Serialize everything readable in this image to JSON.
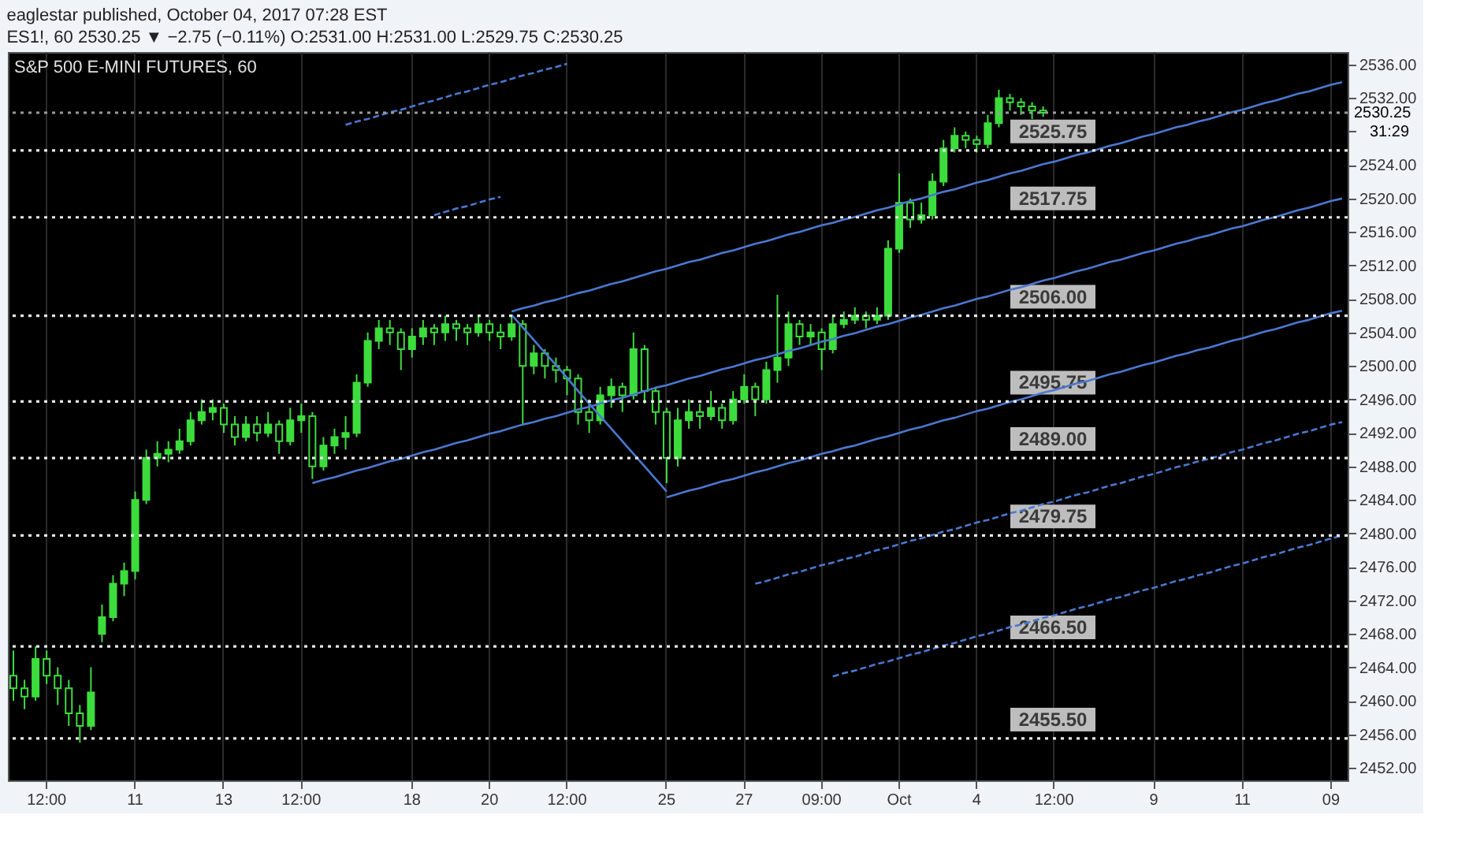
{
  "chart_data": {
    "type": "candlestick",
    "title": "eaglestar published, October 04, 2017 07:28 EST",
    "subtitle": "ES1!, 60 2530.25 ▼ −2.75 (−0.11%) O:2531.00 H:2531.00 L:2529.75 C:2530.25",
    "categories": [
      null,
      null,
      null,
      "12:00",
      null,
      null,
      null,
      null,
      null,
      null,
      null,
      "11",
      null,
      null,
      null,
      null,
      null,
      null,
      null,
      "13",
      null,
      null,
      null,
      null,
      null,
      null,
      "12:00",
      null,
      null,
      null,
      null,
      null,
      null,
      null,
      null,
      null,
      "18",
      null,
      null,
      null,
      null,
      null,
      null,
      "20",
      null,
      null,
      null,
      null,
      null,
      null,
      "12:00",
      null,
      null,
      null,
      null,
      null,
      null,
      null,
      null,
      "25",
      null,
      null,
      null,
      null,
      null,
      null,
      "27",
      null,
      null,
      null,
      null,
      null,
      null,
      "09:00",
      null,
      null,
      null,
      null,
      null,
      null,
      "Oct",
      null,
      null,
      null,
      null,
      null,
      null,
      "4",
      null,
      null,
      null,
      null,
      null,
      null,
      "12:00",
      null,
      null,
      null,
      null,
      null,
      null,
      null,
      null,
      "9",
      null,
      null,
      null,
      null,
      null,
      null,
      null,
      "11",
      null,
      null,
      null,
      null,
      null,
      null,
      null,
      "09",
      null
    ],
    "ylim": [
      2450.5,
      2537.5
    ],
    "yticks": [
      {
        "value": 2452,
        "label": "2452.00"
      },
      {
        "value": 2456,
        "label": "2456.00"
      },
      {
        "value": 2460,
        "label": "2460.00"
      },
      {
        "value": 2464,
        "label": "2464.00"
      },
      {
        "value": 2468,
        "label": "2468.00"
      },
      {
        "value": 2472,
        "label": "2472.00"
      },
      {
        "value": 2476,
        "label": "2476.00"
      },
      {
        "value": 2480,
        "label": "2480.00"
      },
      {
        "value": 2484,
        "label": "2484.00"
      },
      {
        "value": 2488,
        "label": "2488.00"
      },
      {
        "value": 2492,
        "label": "2492.00"
      },
      {
        "value": 2496,
        "label": "2496.00"
      },
      {
        "value": 2500,
        "label": "2500.00"
      },
      {
        "value": 2504,
        "label": "2504.00"
      },
      {
        "value": 2508,
        "label": "2508.00"
      },
      {
        "value": 2512,
        "label": "2512.00"
      },
      {
        "value": 2516,
        "label": "2516.00"
      },
      {
        "value": 2520,
        "label": "2520.00"
      },
      {
        "value": 2524,
        "label": "2524.00"
      },
      {
        "value": 2528,
        "label": null
      },
      {
        "value": 2532,
        "label": "2532.00"
      },
      {
        "value": 2536,
        "label": "2536.00"
      }
    ],
    "grid": "x",
    "series": [
      {
        "color": "#3ddc3d",
        "ohlc": [
          [
            2463,
            2466,
            2460,
            2461.5
          ],
          [
            2461.5,
            2462.5,
            2459,
            2460.5
          ],
          [
            2460.5,
            2466.5,
            2460,
            2465
          ],
          [
            2465,
            2466,
            2462,
            2463
          ],
          [
            2463,
            2464,
            2459.5,
            2461.5
          ],
          [
            2461.5,
            2462.5,
            2457,
            2458.5
          ],
          [
            2458.5,
            2459.5,
            2455,
            2457
          ],
          [
            2457,
            2464,
            2456.5,
            2461
          ],
          [
            2468,
            2471.5,
            2467,
            2470
          ],
          [
            2470,
            2475,
            2469.5,
            2474
          ],
          [
            2474,
            2476.5,
            2472.5,
            2475.5
          ],
          [
            2475.5,
            2485,
            2474.5,
            2484
          ],
          [
            2484,
            2490,
            2483.5,
            2489
          ],
          [
            2489,
            2491,
            2488,
            2489.5
          ],
          [
            2489.5,
            2491,
            2488.5,
            2490
          ],
          [
            2490,
            2492.5,
            2489.5,
            2491
          ],
          [
            2491,
            2494.5,
            2490.5,
            2493.5
          ],
          [
            2493.5,
            2496,
            2493,
            2494.5
          ],
          [
            2494.5,
            2496,
            2493.5,
            2495
          ],
          [
            2495,
            2495.5,
            2492,
            2493
          ],
          [
            2493,
            2494,
            2490.5,
            2491.5
          ],
          [
            2491.5,
            2494,
            2491,
            2493
          ],
          [
            2493,
            2494,
            2491,
            2492
          ],
          [
            2492,
            2494.5,
            2491.5,
            2493
          ],
          [
            2493,
            2493.5,
            2489.5,
            2491
          ],
          [
            2491,
            2495,
            2490.5,
            2493.5
          ],
          [
            2493.5,
            2495.5,
            2492,
            2494
          ],
          [
            2494,
            2494.5,
            2486.5,
            2488
          ],
          [
            2488,
            2491.5,
            2487.5,
            2490.5
          ],
          [
            2490.5,
            2492.5,
            2489.5,
            2491.5
          ],
          [
            2491.5,
            2494,
            2490,
            2492
          ],
          [
            2492,
            2499,
            2491.5,
            2498
          ],
          [
            2498,
            2504,
            2497.5,
            2503
          ],
          [
            2503,
            2505.5,
            2502,
            2504.5
          ],
          [
            2504.5,
            2505.5,
            2502.5,
            2504
          ],
          [
            2504,
            2504.5,
            2499.5,
            2502
          ],
          [
            2502,
            2504.5,
            2501,
            2503.5
          ],
          [
            2503.5,
            2505.5,
            2502.5,
            2504.5
          ],
          [
            2504.5,
            2505,
            2502.5,
            2504
          ],
          [
            2504,
            2506,
            2503,
            2505
          ],
          [
            2505,
            2505.5,
            2503,
            2504.5
          ],
          [
            2504.5,
            2505,
            2502.5,
            2504
          ],
          [
            2504,
            2506,
            2503.5,
            2505
          ],
          [
            2505,
            2505.5,
            2503,
            2504
          ],
          [
            2504,
            2505,
            2502,
            2503.5
          ],
          [
            2503.5,
            2506,
            2503,
            2505
          ],
          [
            2505,
            2505.5,
            2493,
            2500
          ],
          [
            2500,
            2502.5,
            2499,
            2501.5
          ],
          [
            2501.5,
            2502,
            2498.5,
            2500
          ],
          [
            2500,
            2501,
            2498,
            2499.5
          ],
          [
            2499.5,
            2500,
            2496.5,
            2498.5
          ],
          [
            2498.5,
            2499,
            2493,
            2494.5
          ],
          [
            2494.5,
            2496,
            2492,
            2493.5
          ],
          [
            2493.5,
            2497.5,
            2493,
            2496.5
          ],
          [
            2496.5,
            2498.5,
            2495,
            2497.5
          ],
          [
            2497.5,
            2498,
            2494.5,
            2496.5
          ],
          [
            2496.5,
            2504,
            2496,
            2502
          ],
          [
            2502,
            2502.5,
            2495.5,
            2497
          ],
          [
            2497,
            2497.5,
            2493,
            2494.5
          ],
          [
            2494.5,
            2495,
            2486,
            2489
          ],
          [
            2489,
            2495,
            2488,
            2493.5
          ],
          [
            2493.5,
            2496,
            2492.5,
            2494.5
          ],
          [
            2494.5,
            2495.5,
            2492.5,
            2494
          ],
          [
            2494,
            2497,
            2493.5,
            2495
          ],
          [
            2495,
            2495.5,
            2492.5,
            2493.5
          ],
          [
            2493.5,
            2497,
            2493,
            2496
          ],
          [
            2496,
            2499,
            2495.5,
            2497.5
          ],
          [
            2497.5,
            2498,
            2494,
            2496
          ],
          [
            2496,
            2500.5,
            2495.5,
            2499.5
          ],
          [
            2499.5,
            2508.5,
            2498,
            2501
          ],
          [
            2501,
            2506.5,
            2500,
            2505
          ],
          [
            2505,
            2505.5,
            2502.5,
            2503.5
          ],
          [
            2503.5,
            2505,
            2502.5,
            2504
          ],
          [
            2504,
            2504.5,
            2499.5,
            2502
          ],
          [
            2502,
            2506,
            2501.5,
            2505
          ],
          [
            2505,
            2506.5,
            2504.5,
            2505.5
          ],
          [
            2505.5,
            2507,
            2505,
            2506
          ],
          [
            2506,
            2506.5,
            2504.5,
            2505.5
          ],
          [
            2505.5,
            2507,
            2505,
            2506
          ],
          [
            2506,
            2515,
            2505.5,
            2514
          ],
          [
            2514,
            2523,
            2513.5,
            2519.5
          ],
          [
            2519.5,
            2520,
            2516.5,
            2517.5
          ],
          [
            2517.5,
            2519.5,
            2517,
            2518
          ],
          [
            2518,
            2523,
            2517.5,
            2522
          ],
          [
            2522,
            2527,
            2521.5,
            2526
          ],
          [
            2526,
            2528.5,
            2525.5,
            2527.5
          ],
          [
            2527.5,
            2528,
            2526,
            2527
          ],
          [
            2527,
            2527.5,
            2525.5,
            2526.5
          ],
          [
            2526.5,
            2530,
            2526,
            2529
          ],
          [
            2529,
            2533,
            2528.5,
            2532
          ],
          [
            2532,
            2532.5,
            2530.5,
            2531.5
          ],
          [
            2531.5,
            2532,
            2530,
            2531
          ],
          [
            2531,
            2531.5,
            2529.5,
            2530.5
          ],
          [
            2530.5,
            2531,
            2529.75,
            2530.25
          ],
          null,
          null,
          null,
          null,
          null,
          null,
          null,
          null,
          null,
          null,
          null,
          null,
          null,
          null,
          null,
          null,
          null,
          null,
          null,
          null,
          null,
          null,
          null,
          null,
          null,
          null,
          null
        ]
      },
      {
        "type": "line",
        "color": "#4a78d0",
        "line_style": "solid",
        "values": [
          null,
          null,
          null,
          null,
          null,
          null,
          null,
          null,
          null,
          null,
          null,
          null,
          null,
          null,
          null,
          null,
          null,
          null,
          null,
          null,
          null,
          null,
          null,
          null,
          null,
          null,
          null,
          null,
          null,
          null,
          null,
          null,
          null,
          null,
          null,
          null,
          null,
          null,
          null,
          null,
          null,
          null,
          null,
          null,
          null,
          2506.5,
          2506.9,
          2507.2,
          2507.6,
          2507.9,
          2508.3,
          2508.7,
          2509.0,
          2509.4,
          2509.8,
          2510.1,
          2510.5,
          2510.9,
          2511.3,
          2511.6,
          2512.0,
          2512.4,
          2512.7,
          2513.1,
          2513.5,
          2513.8,
          2514.2,
          2514.6,
          2514.9,
          2515.3,
          2515.7,
          2516.0,
          2516.4,
          2516.8,
          2517.1,
          2517.5,
          2517.8,
          2518.2,
          2518.6,
          2518.9,
          2519.3,
          2519.7,
          2520.0,
          2520.4,
          2520.8,
          2521.1,
          2521.5,
          2521.9,
          2522.2,
          2522.6,
          2523.0,
          2523.3,
          2523.7,
          2524.1,
          2524.4,
          2524.8,
          2525.2,
          2525.5,
          2525.9,
          2526.3,
          2526.6,
          2527.0,
          2527.4,
          2527.7,
          2528.1,
          2528.5,
          2528.8,
          2529.2,
          2529.5,
          2529.9,
          2530.3,
          2530.6,
          2531.0,
          2531.4,
          2531.7,
          2532.1,
          2532.5,
          2532.8,
          2533.2,
          2533.6,
          2533.9
        ]
      },
      {
        "type": "line",
        "color": "#4a78d0",
        "line_style": "solid",
        "values": [
          null,
          null,
          null,
          null,
          null,
          null,
          null,
          null,
          null,
          null,
          null,
          null,
          null,
          null,
          null,
          null,
          null,
          null,
          null,
          null,
          null,
          null,
          null,
          null,
          null,
          null,
          null,
          2486.0,
          2486.4,
          2486.7,
          2487.1,
          2487.5,
          2487.8,
          2488.2,
          2488.6,
          2488.9,
          2489.3,
          2489.7,
          2490.0,
          2490.4,
          2490.8,
          2491.1,
          2491.5,
          2491.9,
          2492.2,
          2492.6,
          2493.0,
          2493.3,
          2493.7,
          2494.0,
          2494.4,
          2494.8,
          2495.1,
          2495.5,
          2495.9,
          2496.2,
          2496.6,
          2497.0,
          2497.4,
          2497.7,
          2498.1,
          2498.5,
          2498.8,
          2499.2,
          2499.6,
          2499.9,
          2500.3,
          2500.7,
          2501.0,
          2501.4,
          2501.8,
          2502.1,
          2502.5,
          2502.9,
          2503.2,
          2503.6,
          2503.9,
          2504.3,
          2504.7,
          2505.0,
          2505.4,
          2505.8,
          2506.1,
          2506.5,
          2506.9,
          2507.2,
          2507.6,
          2508.0,
          2508.3,
          2508.7,
          2509.1,
          2509.4,
          2509.8,
          2510.2,
          2510.5,
          2510.9,
          2511.3,
          2511.6,
          2512.0,
          2512.4,
          2512.7,
          2513.1,
          2513.5,
          2513.8,
          2514.2,
          2514.6,
          2514.9,
          2515.3,
          2515.6,
          2516.0,
          2516.4,
          2516.7,
          2517.1,
          2517.5,
          2517.8,
          2518.2,
          2518.6,
          2518.9,
          2519.3,
          2519.7,
          2520.0
        ]
      },
      {
        "type": "line",
        "color": "#4a78d0",
        "line_style": "solid",
        "values": [
          null,
          null,
          null,
          null,
          null,
          null,
          null,
          null,
          null,
          null,
          null,
          null,
          null,
          null,
          null,
          null,
          null,
          null,
          null,
          null,
          null,
          null,
          null,
          null,
          null,
          null,
          null,
          null,
          null,
          null,
          null,
          null,
          null,
          null,
          null,
          null,
          null,
          null,
          null,
          null,
          null,
          null,
          null,
          null,
          null,
          null,
          null,
          null,
          null,
          null,
          null,
          null,
          null,
          null,
          null,
          null,
          null,
          null,
          null,
          2484.3,
          2484.7,
          2485.1,
          2485.4,
          2485.8,
          2486.2,
          2486.5,
          2486.9,
          2487.3,
          2487.6,
          2488.0,
          2488.4,
          2488.7,
          2489.1,
          2489.5,
          2489.8,
          2490.2,
          2490.5,
          2490.9,
          2491.3,
          2491.6,
          2492.0,
          2492.4,
          2492.7,
          2493.1,
          2493.5,
          2493.8,
          2494.2,
          2494.6,
          2494.9,
          2495.3,
          2495.7,
          2496.0,
          2496.4,
          2496.8,
          2497.1,
          2497.5,
          2497.9,
          2498.2,
          2498.6,
          2499.0,
          2499.3,
          2499.7,
          2500.1,
          2500.4,
          2500.8,
          2501.2,
          2501.5,
          2501.9,
          2502.2,
          2502.6,
          2503.0,
          2503.3,
          2503.7,
          2504.1,
          2504.4,
          2504.8,
          2505.2,
          2505.5,
          2505.9,
          2506.3,
          2506.6
        ]
      },
      {
        "type": "line",
        "color": "#4a78d0",
        "line_style": "solid",
        "values": [
          null,
          null,
          null,
          null,
          null,
          null,
          null,
          null,
          null,
          null,
          null,
          null,
          null,
          null,
          null,
          null,
          null,
          null,
          null,
          null,
          null,
          null,
          null,
          null,
          null,
          null,
          null,
          null,
          null,
          null,
          null,
          null,
          null,
          null,
          null,
          null,
          null,
          null,
          null,
          null,
          null,
          null,
          null,
          null,
          null,
          2506.1,
          2504.6,
          2503.1,
          2501.6,
          2500.1,
          2498.6,
          2497.0,
          2495.5,
          2494.0,
          2492.5,
          2491.0,
          2489.5,
          2488.0,
          2486.5,
          2485.0,
          null,
          null,
          null,
          null,
          null,
          null,
          null,
          null,
          null,
          null,
          null,
          null,
          null,
          null,
          null,
          null,
          null,
          null,
          null,
          null,
          null,
          null,
          null,
          null,
          null,
          null,
          null,
          null,
          null,
          null,
          null,
          null,
          null,
          null,
          null,
          null,
          null,
          null,
          null,
          null,
          null,
          null,
          null,
          null,
          null,
          null,
          null,
          null,
          null,
          null,
          null,
          null,
          null,
          null,
          null,
          null,
          null,
          null,
          null,
          null,
          null
        ]
      },
      {
        "type": "line",
        "color": "#4a78d0",
        "line_style": "dashed",
        "values": [
          null,
          null,
          null,
          null,
          null,
          null,
          null,
          null,
          null,
          null,
          null,
          null,
          null,
          null,
          null,
          null,
          null,
          null,
          null,
          null,
          null,
          null,
          null,
          null,
          null,
          null,
          null,
          null,
          null,
          null,
          2528.8,
          2529.2,
          2529.5,
          2529.9,
          2530.3,
          2530.6,
          2531.0,
          2531.4,
          2531.7,
          2532.1,
          2532.5,
          2532.8,
          2533.2,
          2533.6,
          2533.9,
          2534.3,
          2534.7,
          2535.0,
          2535.4,
          2535.7,
          2536.1,
          null,
          null,
          null,
          null,
          null,
          null,
          null,
          null,
          null,
          null,
          null,
          null,
          null,
          null,
          null,
          null,
          null,
          null,
          null,
          null,
          null,
          null,
          null,
          null,
          null,
          null,
          null,
          null,
          null,
          null,
          null,
          null,
          null,
          null,
          null,
          null,
          null,
          null,
          null,
          null,
          null,
          null,
          null,
          null,
          null,
          null,
          null,
          null,
          null,
          null,
          null,
          null,
          null,
          null,
          null,
          null,
          null,
          null,
          null,
          null,
          null,
          null,
          null,
          null,
          null,
          null,
          null,
          null,
          null,
          null
        ]
      },
      {
        "type": "line",
        "color": "#4a78d0",
        "line_style": "dashed",
        "values": [
          null,
          null,
          null,
          null,
          null,
          null,
          null,
          null,
          null,
          null,
          null,
          null,
          null,
          null,
          null,
          null,
          null,
          null,
          null,
          null,
          null,
          null,
          null,
          null,
          null,
          null,
          null,
          null,
          null,
          null,
          null,
          null,
          null,
          null,
          null,
          null,
          null,
          null,
          2518.0,
          2518.4,
          2518.8,
          2519.1,
          2519.5,
          2519.9,
          2520.2,
          null,
          null,
          null,
          null,
          null,
          null,
          null,
          null,
          null,
          null,
          null,
          null,
          null,
          null,
          null,
          null,
          null,
          null,
          null,
          null,
          null,
          null,
          null,
          null,
          null,
          null,
          null,
          null,
          null,
          null,
          null,
          null,
          null,
          null,
          null,
          null,
          null,
          null,
          null,
          null,
          null,
          null,
          null,
          null,
          null,
          null,
          null,
          null,
          null,
          null,
          null,
          null,
          null,
          null,
          null,
          null,
          null,
          null,
          null,
          null,
          null,
          null,
          null,
          null,
          null,
          null,
          null,
          null,
          null,
          null,
          null,
          null,
          null,
          null,
          null,
          null
        ]
      },
      {
        "type": "line",
        "color": "#4a78d0",
        "line_style": "dashed",
        "values": [
          null,
          null,
          null,
          null,
          null,
          null,
          null,
          null,
          null,
          null,
          null,
          null,
          null,
          null,
          null,
          null,
          null,
          null,
          null,
          null,
          null,
          null,
          null,
          null,
          null,
          null,
          null,
          null,
          null,
          null,
          null,
          null,
          null,
          null,
          null,
          null,
          null,
          null,
          null,
          null,
          null,
          null,
          null,
          null,
          null,
          null,
          null,
          null,
          null,
          null,
          null,
          null,
          null,
          null,
          null,
          null,
          null,
          null,
          null,
          null,
          null,
          null,
          null,
          null,
          null,
          null,
          null,
          2474.0,
          2474.3,
          2474.7,
          2475.1,
          2475.4,
          2475.8,
          2476.2,
          2476.5,
          2476.9,
          2477.2,
          2477.6,
          2478.0,
          2478.3,
          2478.7,
          2479.1,
          2479.4,
          2479.8,
          2480.2,
          2480.5,
          2480.9,
          2481.3,
          2481.6,
          2482.0,
          2482.4,
          2482.7,
          2483.1,
          2483.5,
          2483.8,
          2484.2,
          2484.6,
          2484.9,
          2485.3,
          2485.7,
          2486.0,
          2486.4,
          2486.8,
          2487.1,
          2487.5,
          2487.9,
          2488.2,
          2488.6,
          2488.9,
          2489.3,
          2489.7,
          2490.0,
          2490.4,
          2490.8,
          2491.1,
          2491.5,
          2491.9,
          2492.2,
          2492.6,
          2493.0,
          2493.3
        ]
      },
      {
        "type": "line",
        "color": "#4a78d0",
        "line_style": "dashed",
        "values": [
          null,
          null,
          null,
          null,
          null,
          null,
          null,
          null,
          null,
          null,
          null,
          null,
          null,
          null,
          null,
          null,
          null,
          null,
          null,
          null,
          null,
          null,
          null,
          null,
          null,
          null,
          null,
          null,
          null,
          null,
          null,
          null,
          null,
          null,
          null,
          null,
          null,
          null,
          null,
          null,
          null,
          null,
          null,
          null,
          null,
          null,
          null,
          null,
          null,
          null,
          null,
          null,
          null,
          null,
          null,
          null,
          null,
          null,
          null,
          null,
          null,
          null,
          null,
          null,
          null,
          null,
          null,
          null,
          null,
          null,
          null,
          null,
          null,
          null,
          2462.9,
          2463.3,
          2463.6,
          2464.0,
          2464.4,
          2464.7,
          2465.1,
          2465.5,
          2465.8,
          2466.2,
          2466.6,
          2466.9,
          2467.3,
          2467.7,
          2468.0,
          2468.4,
          2468.8,
          2469.1,
          2469.5,
          2469.9,
          2470.2,
          2470.6,
          2471.0,
          2471.3,
          2471.7,
          2472.1,
          2472.4,
          2472.8,
          2473.2,
          2473.5,
          2473.9,
          2474.3,
          2474.6,
          2475.0,
          2475.3,
          2475.7,
          2476.1,
          2476.4,
          2476.8,
          2477.2,
          2477.5,
          2477.9,
          2478.3,
          2478.6,
          2479.0,
          2479.4,
          2479.7
        ]
      }
    ],
    "ref_lines": [
      {
        "axis": "y",
        "value": 2530.25,
        "label": "2530.25",
        "color": "#9a9a9a",
        "line_style": "dotted"
      },
      {
        "axis": "y",
        "value": 2525.75,
        "label": "2525.75",
        "color": "#e8e8e8",
        "line_style": "dotted"
      },
      {
        "axis": "y",
        "value": 2517.75,
        "label": "2517.75",
        "color": "#e8e8e8",
        "line_style": "dotted"
      },
      {
        "axis": "y",
        "value": 2506,
        "label": "2506.00",
        "color": "#e8e8e8",
        "line_style": "dotted"
      },
      {
        "axis": "y",
        "value": 2495.75,
        "label": "2495.75",
        "color": "#e8e8e8",
        "line_style": "dotted"
      },
      {
        "axis": "y",
        "value": 2489,
        "label": "2489.00",
        "color": "#e8e8e8",
        "line_style": "dotted"
      },
      {
        "axis": "y",
        "value": 2479.75,
        "label": "2479.75",
        "color": "#e8e8e8",
        "line_style": "dotted"
      },
      {
        "axis": "y",
        "value": 2466.5,
        "label": "2466.50",
        "color": "#e8e8e8",
        "line_style": "dotted"
      },
      {
        "axis": "y",
        "value": 2455.5,
        "label": "2455.50",
        "color": "#e8e8e8",
        "line_style": "dotted"
      }
    ],
    "annotations": [
      "S&P 500 E-MINI FUTURES, 60",
      "31:29"
    ]
  }
}
